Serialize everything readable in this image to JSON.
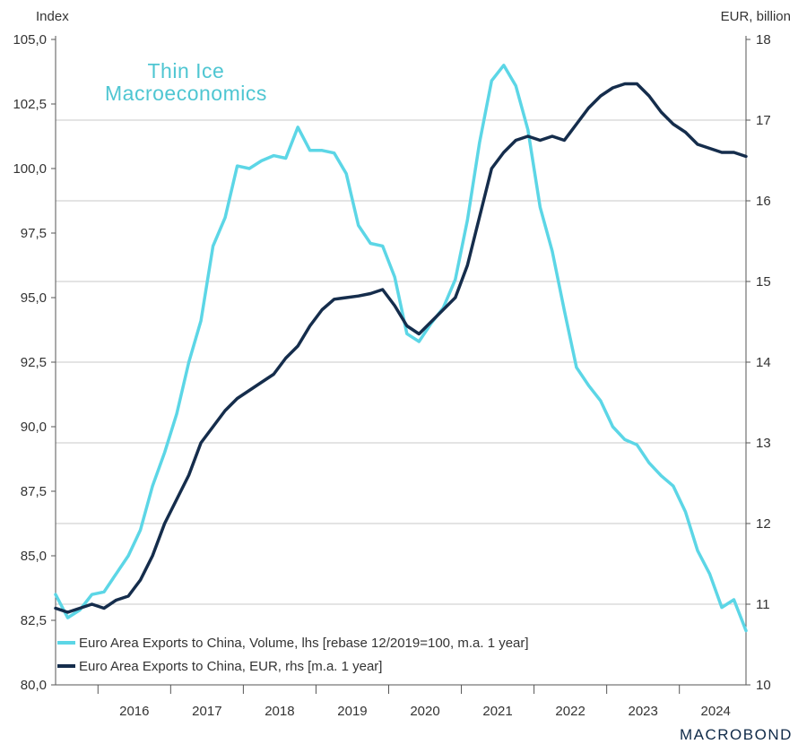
{
  "axes": {
    "left_title": "Index",
    "right_title": "EUR, billion"
  },
  "logo": {
    "line1": "Thin Ice",
    "line2": "Macroeconomics"
  },
  "brand": "MACROBOND",
  "legend": [
    {
      "label": "Euro Area Exports to China, Volume, lhs [rebase 12/2019=100, m.a. 1 year]",
      "color": "#5cd6e6"
    },
    {
      "label": "Euro Area Exports to China, EUR, rhs [m.a. 1 year]",
      "color": "#152d4c"
    }
  ],
  "chart_data": {
    "type": "line",
    "xlabel": "",
    "x_ticks": [
      "2016",
      "2017",
      "2018",
      "2019",
      "2020",
      "2021",
      "2022",
      "2023",
      "2024"
    ],
    "x_range": [
      "2015-06",
      "2024-09"
    ],
    "ylim_left": [
      80,
      105
    ],
    "yticks_left": [
      "80,0",
      "82,5",
      "85,0",
      "87,5",
      "90,0",
      "92,5",
      "95,0",
      "97,5",
      "100,0",
      "102,5",
      "105,0"
    ],
    "ylim_right": [
      10,
      18
    ],
    "yticks_right": [
      "10",
      "11",
      "12",
      "13",
      "14",
      "15",
      "16",
      "17",
      "18"
    ],
    "grid": true,
    "legend_position": "bottom-left",
    "series": [
      {
        "name": "Euro Area Exports to China, Volume, lhs [rebase 12/2019=100, m.a. 1 year]",
        "axis": "left",
        "color": "#5cd6e6",
        "points": [
          [
            "2015-06",
            83.5
          ],
          [
            "2015-08",
            82.6
          ],
          [
            "2015-10",
            82.9
          ],
          [
            "2015-12",
            83.5
          ],
          [
            "2016-02",
            83.6
          ],
          [
            "2016-04",
            84.3
          ],
          [
            "2016-06",
            85.0
          ],
          [
            "2016-08",
            86.0
          ],
          [
            "2016-10",
            87.7
          ],
          [
            "2016-12",
            89.0
          ],
          [
            "2017-02",
            90.5
          ],
          [
            "2017-04",
            92.5
          ],
          [
            "2017-06",
            94.1
          ],
          [
            "2017-08",
            97.0
          ],
          [
            "2017-10",
            98.1
          ],
          [
            "2017-12",
            100.1
          ],
          [
            "2018-02",
            100.0
          ],
          [
            "2018-04",
            100.3
          ],
          [
            "2018-06",
            100.5
          ],
          [
            "2018-08",
            100.4
          ],
          [
            "2018-10",
            101.6
          ],
          [
            "2018-12",
            100.7
          ],
          [
            "2019-02",
            100.7
          ],
          [
            "2019-04",
            100.6
          ],
          [
            "2019-06",
            99.8
          ],
          [
            "2019-08",
            97.8
          ],
          [
            "2019-10",
            97.1
          ],
          [
            "2019-12",
            97.0
          ],
          [
            "2020-02",
            95.8
          ],
          [
            "2020-04",
            93.6
          ],
          [
            "2020-06",
            93.3
          ],
          [
            "2020-08",
            94.0
          ],
          [
            "2020-10",
            94.6
          ],
          [
            "2020-12",
            95.7
          ],
          [
            "2021-02",
            98.0
          ],
          [
            "2021-04",
            101.0
          ],
          [
            "2021-06",
            103.4
          ],
          [
            "2021-08",
            104.0
          ],
          [
            "2021-10",
            103.2
          ],
          [
            "2021-12",
            101.5
          ],
          [
            "2022-02",
            98.5
          ],
          [
            "2022-04",
            96.8
          ],
          [
            "2022-06",
            94.5
          ],
          [
            "2022-08",
            92.3
          ],
          [
            "2022-10",
            91.6
          ],
          [
            "2022-12",
            91.0
          ],
          [
            "2023-02",
            90.0
          ],
          [
            "2023-04",
            89.5
          ],
          [
            "2023-06",
            89.3
          ],
          [
            "2023-08",
            88.6
          ],
          [
            "2023-10",
            88.1
          ],
          [
            "2023-12",
            87.7
          ],
          [
            "2024-02",
            86.7
          ],
          [
            "2024-04",
            85.2
          ],
          [
            "2024-06",
            84.3
          ],
          [
            "2024-08",
            83.0
          ],
          [
            "2024-10",
            83.3
          ],
          [
            "2024-12",
            82.1
          ]
        ]
      },
      {
        "name": "Euro Area Exports to China, EUR, rhs [m.a. 1 year]",
        "axis": "right",
        "color": "#152d4c",
        "points": [
          [
            "2015-06",
            10.95
          ],
          [
            "2015-08",
            10.9
          ],
          [
            "2015-10",
            10.95
          ],
          [
            "2015-12",
            11.0
          ],
          [
            "2016-02",
            10.95
          ],
          [
            "2016-04",
            11.05
          ],
          [
            "2016-06",
            11.1
          ],
          [
            "2016-08",
            11.3
          ],
          [
            "2016-10",
            11.6
          ],
          [
            "2016-12",
            12.0
          ],
          [
            "2017-02",
            12.3
          ],
          [
            "2017-04",
            12.6
          ],
          [
            "2017-06",
            13.0
          ],
          [
            "2017-08",
            13.2
          ],
          [
            "2017-10",
            13.4
          ],
          [
            "2017-12",
            13.55
          ],
          [
            "2018-02",
            13.65
          ],
          [
            "2018-04",
            13.75
          ],
          [
            "2018-06",
            13.85
          ],
          [
            "2018-08",
            14.05
          ],
          [
            "2018-10",
            14.2
          ],
          [
            "2018-12",
            14.45
          ],
          [
            "2019-02",
            14.65
          ],
          [
            "2019-04",
            14.78
          ],
          [
            "2019-06",
            14.8
          ],
          [
            "2019-08",
            14.82
          ],
          [
            "2019-10",
            14.85
          ],
          [
            "2019-12",
            14.9
          ],
          [
            "2020-02",
            14.7
          ],
          [
            "2020-04",
            14.45
          ],
          [
            "2020-06",
            14.35
          ],
          [
            "2020-08",
            14.5
          ],
          [
            "2020-10",
            14.65
          ],
          [
            "2020-12",
            14.8
          ],
          [
            "2021-02",
            15.2
          ],
          [
            "2021-04",
            15.8
          ],
          [
            "2021-06",
            16.4
          ],
          [
            "2021-08",
            16.6
          ],
          [
            "2021-10",
            16.75
          ],
          [
            "2021-12",
            16.8
          ],
          [
            "2022-02",
            16.75
          ],
          [
            "2022-04",
            16.8
          ],
          [
            "2022-06",
            16.75
          ],
          [
            "2022-08",
            16.95
          ],
          [
            "2022-10",
            17.15
          ],
          [
            "2022-12",
            17.3
          ],
          [
            "2023-02",
            17.4
          ],
          [
            "2023-04",
            17.45
          ],
          [
            "2023-06",
            17.45
          ],
          [
            "2023-08",
            17.3
          ],
          [
            "2023-10",
            17.1
          ],
          [
            "2023-12",
            16.95
          ],
          [
            "2024-02",
            16.85
          ],
          [
            "2024-04",
            16.7
          ],
          [
            "2024-06",
            16.65
          ],
          [
            "2024-08",
            16.6
          ],
          [
            "2024-10",
            16.6
          ],
          [
            "2024-12",
            16.55
          ]
        ]
      }
    ]
  }
}
